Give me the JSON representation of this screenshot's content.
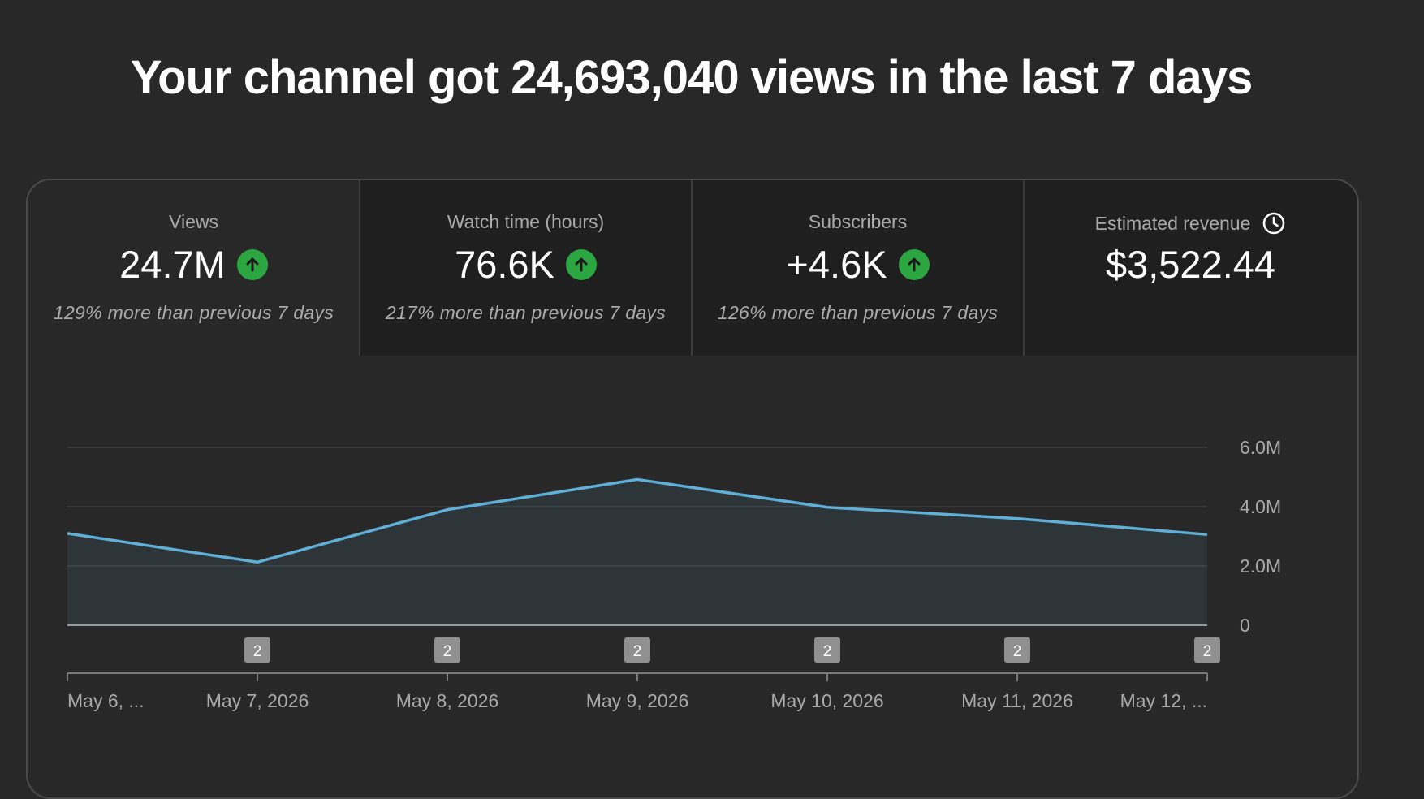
{
  "headline": "Your channel got 24,693,040 views in the last 7 days",
  "metrics": [
    {
      "title": "Views",
      "value": "24.7M",
      "note": "129% more than previous 7 days",
      "trend_icon": "arrow-up-icon"
    },
    {
      "title": "Watch time (hours)",
      "value": "76.6K",
      "note": "217% more than previous 7 days",
      "trend_icon": "arrow-up-icon"
    },
    {
      "title": "Subscribers",
      "value": "+4.6K",
      "note": "126% more than previous 7 days",
      "trend_icon": "arrow-up-icon"
    },
    {
      "title": "Estimated revenue",
      "value": "$3,522.44",
      "note": "",
      "title_icon": "clock-icon"
    }
  ],
  "colors": {
    "background": "#282828",
    "line": "#5fafd7",
    "trend_up": "#2ba640",
    "marker": "#909090"
  },
  "chart_data": {
    "type": "area",
    "x": [
      "May 6, ...",
      "May 7, 2026",
      "May 8, 2026",
      "May 9, 2026",
      "May 10, 2026",
      "May 11, 2026",
      "May 12, ..."
    ],
    "series": [
      {
        "values": [
          3100000,
          2130000,
          3900000,
          4920000,
          3980000,
          3600000,
          3060000
        ]
      }
    ],
    "ylim": [
      0,
      6000000
    ],
    "yticks": [
      0,
      2000000,
      4000000,
      6000000
    ],
    "ytick_labels": [
      "0",
      "2.0M",
      "4.0M",
      "6.0M"
    ],
    "grid": true,
    "markers": [
      {
        "x": "May 7, 2026",
        "label": "2"
      },
      {
        "x": "May 8, 2026",
        "label": "2"
      },
      {
        "x": "May 9, 2026",
        "label": "2"
      },
      {
        "x": "May 10, 2026",
        "label": "2"
      },
      {
        "x": "May 11, 2026",
        "label": "2"
      },
      {
        "x": "May 12, ...",
        "label": "2"
      }
    ]
  }
}
